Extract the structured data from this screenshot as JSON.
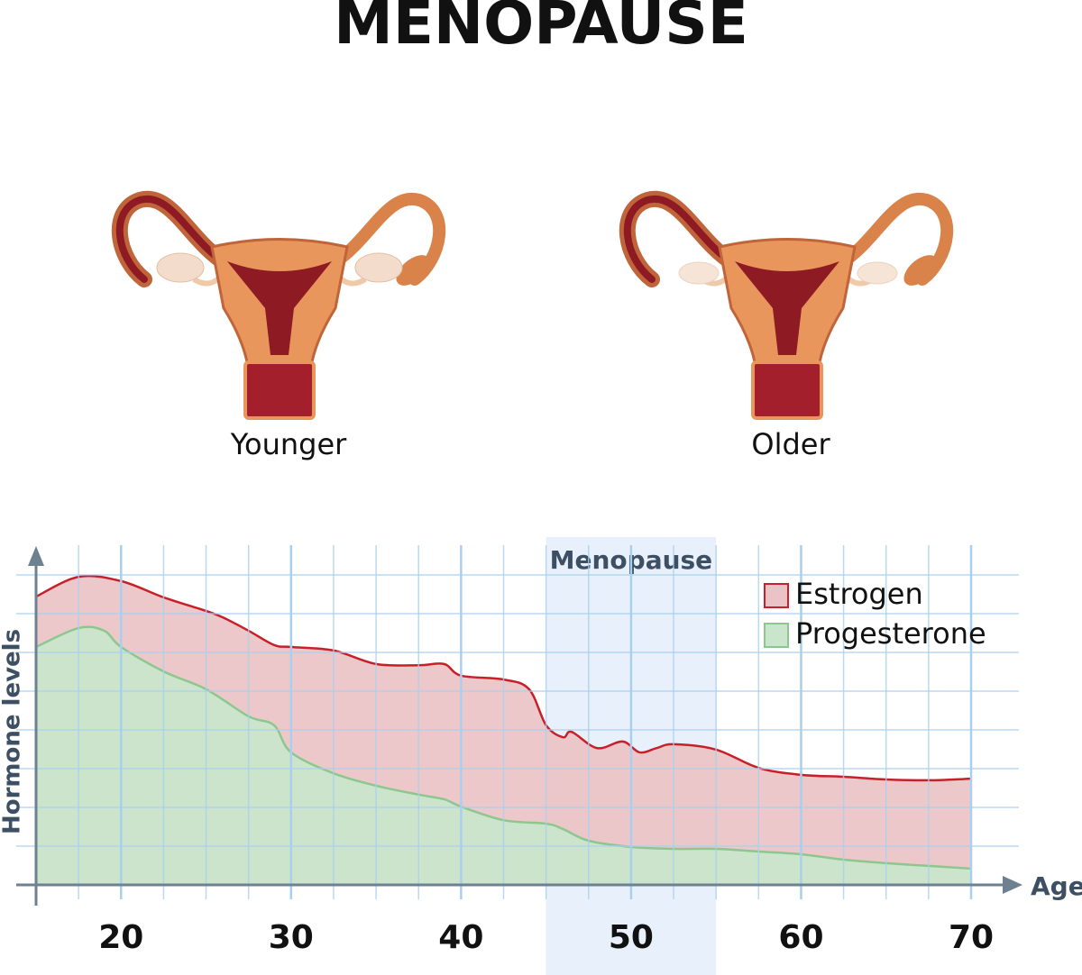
{
  "header": {
    "title": "MENOPAUSE"
  },
  "illustrations": [
    {
      "label": "Younger"
    },
    {
      "label": "Older"
    }
  ],
  "chart_data": {
    "type": "area",
    "y_label": "Hormone levels",
    "x_label": "Age",
    "band": {
      "label": "Menopause",
      "from": 45,
      "to": 55
    },
    "xlim": [
      15,
      70
    ],
    "xticks": [
      20,
      30,
      40,
      50,
      60,
      70
    ],
    "xgrid_minor": [
      17.5,
      22.5,
      25,
      27.5,
      32.5,
      35,
      37.5,
      42.5,
      45,
      47.5,
      52.5,
      55,
      57.5,
      62.5,
      65,
      67.5
    ],
    "ylim": [
      0,
      9
    ],
    "yticks": [
      1,
      2,
      3,
      4,
      5,
      6,
      7,
      8
    ],
    "grid": true,
    "legend": "upper right",
    "series": [
      {
        "name": "Estrogen",
        "color": "#c8202a",
        "fill": "#ebc3c6",
        "x": [
          15,
          17.5,
          20,
          22.5,
          25,
          26,
          27.5,
          29,
          30,
          32.5,
          35,
          37.5,
          39,
          40,
          42.5,
          44,
          45,
          46,
          46.5,
          48,
          49.5,
          50.5,
          51.5,
          52.5,
          55,
          57.5,
          60,
          62.5,
          65,
          67.5,
          70
        ],
        "values": [
          7.44,
          7.95,
          7.84,
          7.42,
          7.07,
          6.9,
          6.56,
          6.19,
          6.14,
          6.05,
          5.7,
          5.67,
          5.7,
          5.4,
          5.3,
          5.05,
          4.12,
          3.81,
          3.95,
          3.53,
          3.7,
          3.42,
          3.53,
          3.63,
          3.49,
          3.02,
          2.84,
          2.79,
          2.72,
          2.7,
          2.74
        ]
      },
      {
        "name": "Progesterone",
        "color": "#8cc78e",
        "fill": "#c9e6cc",
        "x": [
          15,
          17.5,
          19,
          20,
          22.5,
          25,
          27.5,
          29,
          30,
          32.5,
          35,
          37.5,
          39,
          40,
          42.5,
          45,
          46,
          47.5,
          50,
          52.5,
          55,
          57.5,
          60,
          62.5,
          65,
          67.5,
          70
        ],
        "values": [
          6.14,
          6.63,
          6.56,
          6.14,
          5.51,
          5.05,
          4.35,
          4.12,
          3.42,
          2.88,
          2.56,
          2.33,
          2.21,
          2.02,
          1.67,
          1.58,
          1.44,
          1.14,
          0.98,
          0.93,
          0.93,
          0.86,
          0.79,
          0.65,
          0.56,
          0.49,
          0.42
        ]
      }
    ]
  }
}
